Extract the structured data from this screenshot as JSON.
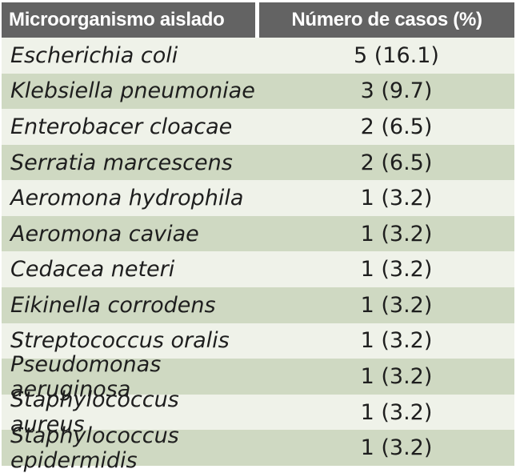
{
  "theme": {
    "header_bg": "#636363",
    "header_text": "#ffffff",
    "row_light": "#eff2e9",
    "row_green": "#cfd9c2",
    "body_text": "#1e1e1e",
    "page_bg": "#ffffff"
  },
  "table": {
    "columns": [
      {
        "label": "Microorganismo aislado"
      },
      {
        "label": "Número de casos (%)"
      }
    ],
    "rows": [
      {
        "organism": "Escherichia coli",
        "cases": "5 (16.1)"
      },
      {
        "organism": "Klebsiella pneumoniae",
        "cases": "3 (9.7)"
      },
      {
        "organism": "Enterobacer cloacae",
        "cases": "2 (6.5)"
      },
      {
        "organism": "Serratia marcescens",
        "cases": "2 (6.5)"
      },
      {
        "organism": "Aeromona hydrophila",
        "cases": "1 (3.2)"
      },
      {
        "organism": "Aeromona caviae",
        "cases": "1 (3.2)"
      },
      {
        "organism": "Cedacea neteri",
        "cases": "1 (3.2)"
      },
      {
        "organism": "Eikinella corrodens",
        "cases": "1 (3.2)"
      },
      {
        "organism": "Streptococcus oralis",
        "cases": "1 (3.2)"
      },
      {
        "organism": "Pseudomonas aeruginosa",
        "cases": "1 (3.2)"
      },
      {
        "organism": "Staphylococcus aureus",
        "cases": "1 (3.2)"
      },
      {
        "organism": "Staphylococcus epidermidis",
        "cases": "1 (3.2)"
      }
    ]
  }
}
